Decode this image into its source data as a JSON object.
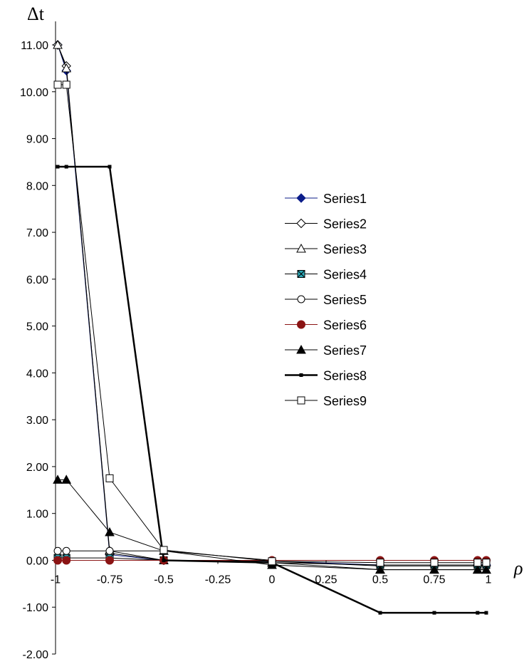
{
  "chart_data": {
    "type": "line",
    "ylabel": "Δt",
    "xlabel": "ρ",
    "xlim": [
      -1,
      1
    ],
    "ylim": [
      -2,
      11
    ],
    "x_ticks": [
      -1,
      -0.75,
      -0.5,
      -0.25,
      0,
      0.25,
      0.5,
      0.75,
      1
    ],
    "x_tick_labels": [
      "-1",
      "-0.75",
      "-0.5",
      "-0.25",
      "0",
      "0.25",
      "0.5",
      "0.75",
      "1"
    ],
    "y_ticks": [
      -2,
      -1,
      0,
      1,
      2,
      3,
      4,
      5,
      6,
      7,
      8,
      9,
      10,
      11
    ],
    "y_tick_labels": [
      "-2.00",
      "-1.00",
      "0.00",
      "1.00",
      "2.00",
      "3.00",
      "4.00",
      "5.00",
      "6.00",
      "7.00",
      "8.00",
      "9.00",
      "10.00",
      "11.00"
    ],
    "grid": false,
    "legend_position": "center-right",
    "x": [
      -0.99,
      -0.95,
      -0.75,
      -0.5,
      0,
      0.5,
      0.75,
      0.95,
      0.99
    ],
    "series": [
      {
        "name": "Series1",
        "marker": "diamond-filled",
        "color": "#0b1d8a",
        "width": 1,
        "values": [
          11.0,
          10.45,
          0.12,
          0.0,
          -0.02,
          -0.1,
          -0.1,
          -0.1,
          -0.1
        ]
      },
      {
        "name": "Series2",
        "marker": "diamond-open",
        "color": "#000000",
        "width": 1,
        "values": [
          11.0,
          10.55,
          0.15,
          0.0,
          -0.02,
          -0.12,
          -0.12,
          -0.12,
          -0.12
        ]
      },
      {
        "name": "Series3",
        "marker": "triangle-open",
        "color": "#000000",
        "width": 1,
        "values": [
          11.0,
          10.5,
          0.2,
          0.0,
          -0.05,
          -0.2,
          -0.2,
          -0.2,
          -0.2
        ]
      },
      {
        "name": "Series4",
        "marker": "square-x",
        "color": "#2aa9b8",
        "width": 1,
        "values": [
          0.05,
          0.05,
          0.05,
          0.0,
          -0.05,
          -0.1,
          -0.1,
          -0.1,
          -0.1
        ]
      },
      {
        "name": "Series5",
        "marker": "circle-open",
        "color": "#000000",
        "width": 1,
        "values": [
          0.2,
          0.2,
          0.2,
          0.2,
          0.0,
          0.0,
          0.0,
          0.0,
          0.0
        ]
      },
      {
        "name": "Series6",
        "marker": "circle-filled",
        "color": "#8b1414",
        "width": 1,
        "values": [
          0.0,
          0.0,
          0.0,
          0.0,
          0.0,
          0.0,
          0.0,
          0.0,
          0.0
        ]
      },
      {
        "name": "Series7",
        "marker": "triangle-filled",
        "color": "#000000",
        "width": 1,
        "values": [
          1.72,
          1.72,
          0.6,
          0.2,
          -0.1,
          -0.2,
          -0.2,
          -0.2,
          -0.2
        ]
      },
      {
        "name": "Series8",
        "marker": "square-small",
        "color": "#000000",
        "width": 2.5,
        "values": [
          8.4,
          8.4,
          8.4,
          0.0,
          -0.05,
          -1.12,
          -1.12,
          -1.12,
          -1.12
        ]
      },
      {
        "name": "Series9",
        "marker": "square-open",
        "color": "#000000",
        "width": 1,
        "values": [
          10.15,
          10.15,
          1.75,
          0.22,
          -0.02,
          -0.05,
          -0.05,
          -0.05,
          -0.05
        ]
      }
    ]
  }
}
